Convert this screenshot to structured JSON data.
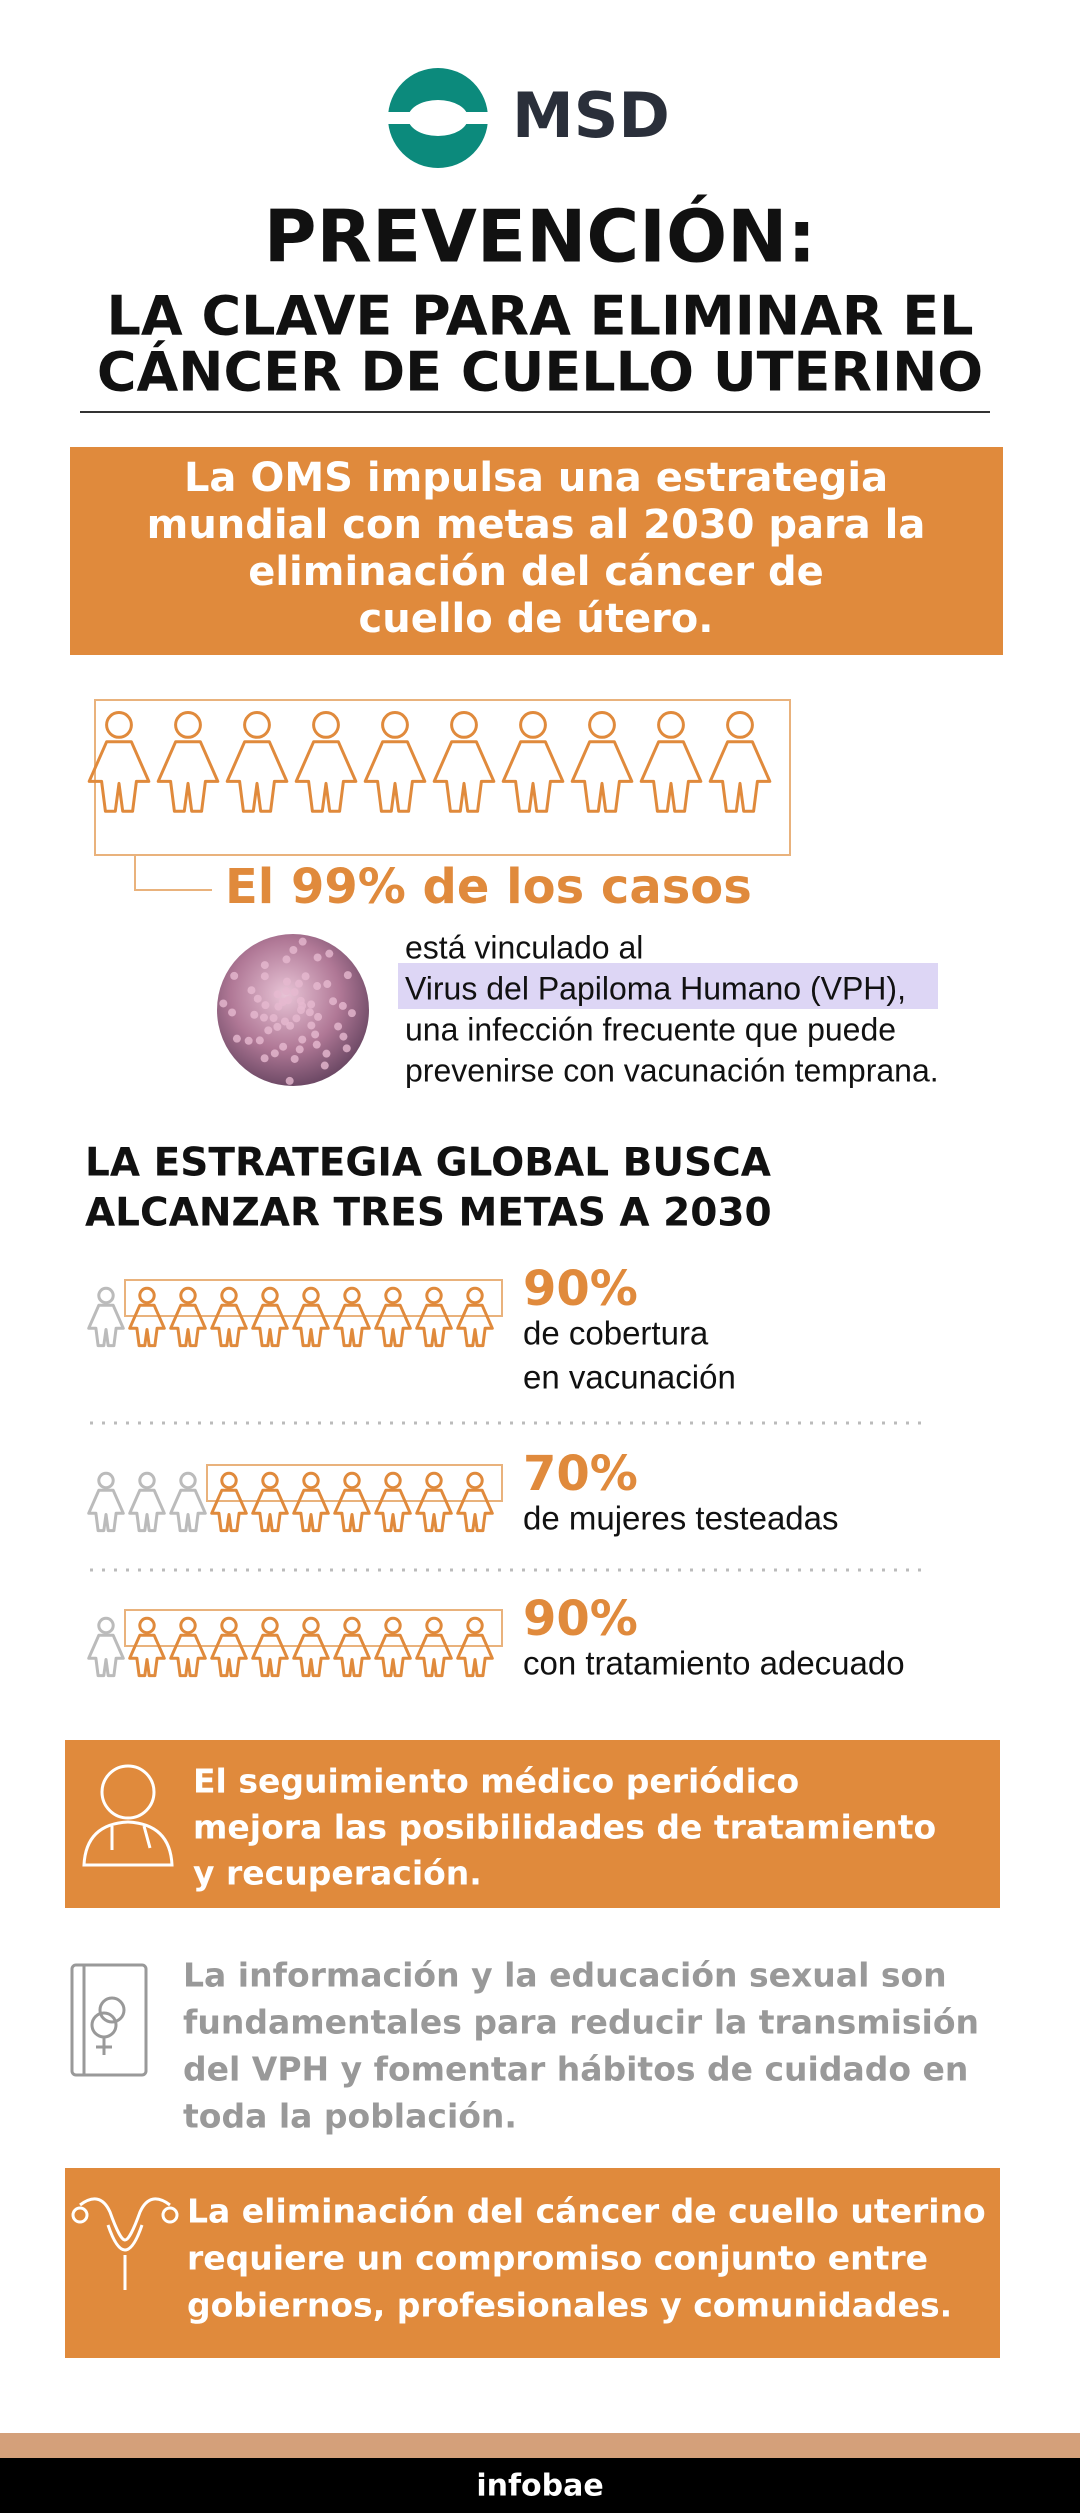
{
  "logo": {
    "brand": "MSD"
  },
  "header": {
    "title": "PREVENCIÓN:",
    "subtitle_lines": [
      "LA CLAVE PARA ELIMINAR EL",
      "CÁNCER DE CUELLO UTERINO"
    ]
  },
  "intro": {
    "lines": [
      "La OMS impulsa una estrategia",
      "mundial con metas al 2030 para la",
      "eliminación del cáncer de",
      "cuello de útero."
    ]
  },
  "highlight": {
    "headline": "El 99% de los casos",
    "lines": [
      "está vinculado al",
      "Virus del Papiloma Humano (VPH),",
      "una infección frecuente que puede",
      "prevenirse con vacunación temprana."
    ]
  },
  "goals": {
    "title_lines": [
      "LA ESTRATEGIA GLOBAL BUSCA",
      "ALCANZAR TRES METAS A 2030"
    ],
    "items": [
      {
        "percent": "90%",
        "lines": [
          "de cobertura",
          "en vacunación"
        ]
      },
      {
        "percent": "70%",
        "lines": [
          "de mujeres testeadas"
        ]
      },
      {
        "percent": "90%",
        "lines": [
          "con tratamiento adecuado"
        ]
      }
    ]
  },
  "notes": [
    {
      "lines": [
        "El seguimiento médico periódico",
        "mejora las posibilidades de tratamiento",
        "y recuperación."
      ]
    },
    {
      "lines": [
        "La información y la educación sexual son",
        "fundamentales para reducir la transmisión",
        "del VPH y fomentar hábitos de cuidado en",
        "toda la población."
      ]
    },
    {
      "lines": [
        "La eliminación del cáncer de cuello uterino",
        "requiere un compromiso conjunto entre",
        "gobiernos, profesionales y comunidades."
      ]
    }
  ],
  "footer": {
    "brand": "infobae"
  }
}
